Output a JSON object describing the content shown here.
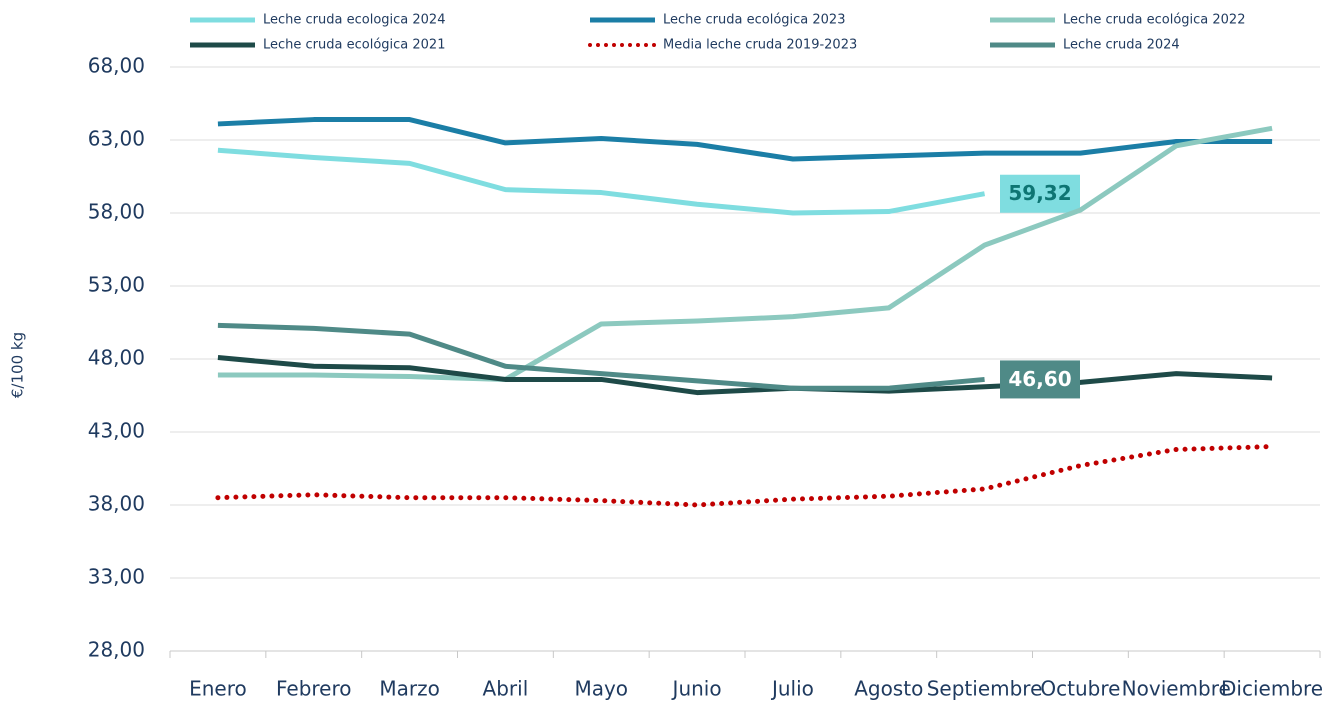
{
  "chart_data": {
    "type": "line",
    "y_label": "€/100 kg",
    "categories": [
      "Enero",
      "Febrero",
      "Marzo",
      "Abril",
      "Mayo",
      "Junio",
      "Julio",
      "Agosto",
      "Septiembre",
      "Octubre",
      "Noviembre",
      "Diciembre"
    ],
    "ylim": [
      28,
      68
    ],
    "yticks": [
      {
        "value": 28,
        "label": "28,00"
      },
      {
        "value": 33,
        "label": "33,00"
      },
      {
        "value": 38,
        "label": "38,00"
      },
      {
        "value": 43,
        "label": "43,00"
      },
      {
        "value": 48,
        "label": "48,00"
      },
      {
        "value": 53,
        "label": "53,00"
      },
      {
        "value": 58,
        "label": "58,00"
      },
      {
        "value": 63,
        "label": "63,00"
      },
      {
        "value": 68,
        "label": "68,00"
      }
    ],
    "grid": true,
    "series": [
      {
        "name": "Leche cruda ecologica 2024",
        "color": "#7fdde0",
        "values": [
          62.3,
          61.8,
          61.4,
          59.6,
          59.4,
          58.6,
          58.0,
          58.1,
          59.32,
          null,
          null,
          null
        ],
        "value_labels": [
          null,
          null,
          null,
          null,
          null,
          null,
          null,
          null,
          "59,32",
          null,
          null,
          null
        ]
      },
      {
        "name": "Leche cruda ecológica 2023",
        "color": "#1b7ea6",
        "values": [
          64.1,
          64.4,
          64.4,
          62.8,
          63.1,
          62.7,
          61.7,
          61.9,
          62.1,
          62.1,
          62.9,
          62.9
        ]
      },
      {
        "name": "Leche cruda ecológica 2022",
        "color": "#8cc9bf",
        "values": [
          46.9,
          46.9,
          46.8,
          46.6,
          50.4,
          50.6,
          50.9,
          51.5,
          55.8,
          58.2,
          62.6,
          63.8
        ]
      },
      {
        "name": "Leche cruda ecológica 2021",
        "color": "#1e4a48",
        "values": [
          48.1,
          47.5,
          47.4,
          46.6,
          46.6,
          45.7,
          46.0,
          45.8,
          46.1,
          46.4,
          47.0,
          46.7
        ]
      },
      {
        "name": "Media leche cruda 2019-2023",
        "color": "#c00000",
        "style": "dotted",
        "values": [
          38.5,
          38.7,
          38.5,
          38.5,
          38.3,
          38.0,
          38.4,
          38.6,
          39.1,
          40.7,
          41.8,
          42.0
        ]
      },
      {
        "name": "Leche cruda 2024",
        "color": "#4f8a87",
        "values": [
          50.3,
          50.1,
          49.7,
          47.5,
          47.0,
          46.5,
          46.0,
          46.0,
          46.6,
          null,
          null,
          null
        ],
        "value_labels": [
          null,
          null,
          null,
          null,
          null,
          null,
          null,
          null,
          "46,60",
          null,
          null,
          null
        ]
      }
    ]
  }
}
